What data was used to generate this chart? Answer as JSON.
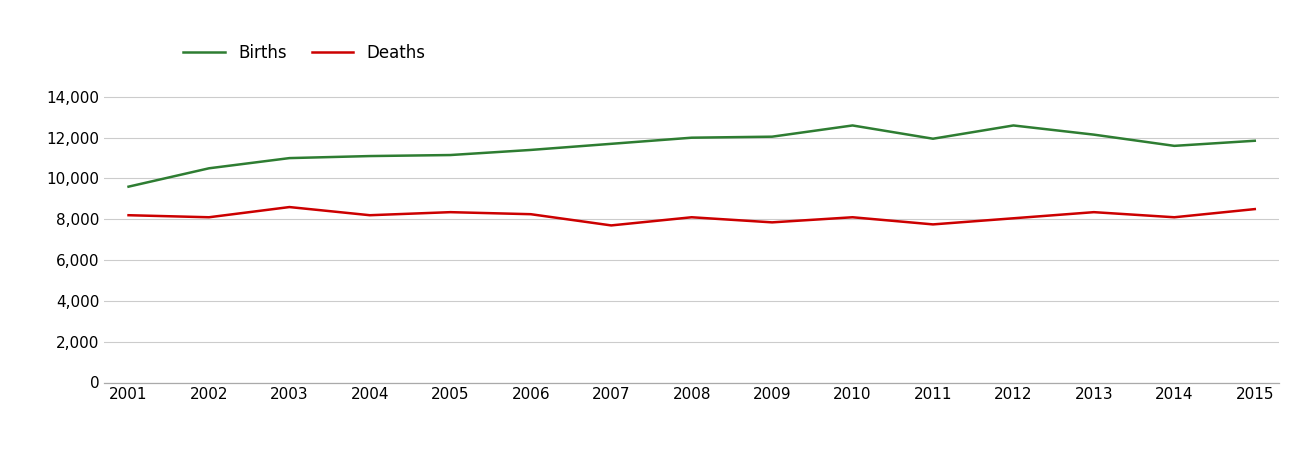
{
  "years": [
    2001,
    2002,
    2003,
    2004,
    2005,
    2006,
    2007,
    2008,
    2009,
    2010,
    2011,
    2012,
    2013,
    2014,
    2015
  ],
  "births": [
    9600,
    10500,
    11000,
    11100,
    11150,
    11400,
    11700,
    12000,
    12050,
    12600,
    11950,
    12600,
    12150,
    11600,
    11850
  ],
  "deaths": [
    8200,
    8100,
    8600,
    8200,
    8350,
    8250,
    7700,
    8100,
    7850,
    8100,
    7750,
    8050,
    8350,
    8100,
    8500
  ],
  "births_color": "#2e7d32",
  "deaths_color": "#cc0000",
  "line_width": 1.8,
  "ylim": [
    0,
    15000
  ],
  "yticks": [
    0,
    2000,
    4000,
    6000,
    8000,
    10000,
    12000,
    14000
  ],
  "background_color": "#ffffff",
  "grid_color": "#cccccc",
  "legend_labels": [
    "Births",
    "Deaths"
  ],
  "tick_fontsize": 11,
  "legend_fontsize": 12
}
